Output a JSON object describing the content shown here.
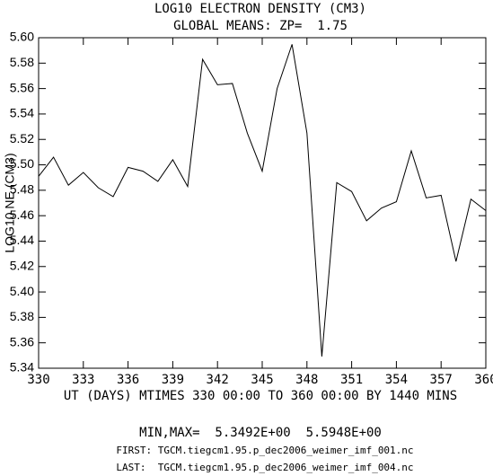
{
  "chart_data": {
    "type": "line",
    "title": "LOG10 ELECTRON DENSITY (CM3)",
    "subtitle": "GLOBAL MEANS: ZP=  1.75",
    "y_label": "LOG10 NE (CM3)",
    "x_label": "UT (DAYS) MTIMES 330 00:00 TO 360 00:00 BY 1440 MINS",
    "annotations": [
      "MIN,MAX=  5.3492E+00  5.5948E+00",
      "FIRST: TGCM.tiegcm1.95.p_dec2006_weimer_imf_001.nc",
      "LAST:  TGCM.tiegcm1.95.p_dec2006_weimer_imf_004.nc"
    ],
    "x": [
      330,
      331,
      332,
      333,
      334,
      335,
      336,
      337,
      338,
      339,
      340,
      341,
      342,
      343,
      344,
      345,
      346,
      347,
      348,
      349,
      350,
      351,
      352,
      353,
      354,
      355,
      356,
      357,
      358,
      359,
      360
    ],
    "series": [
      {
        "color": "#000000",
        "values": [
          5.491,
          5.506,
          5.484,
          5.494,
          5.482,
          5.475,
          5.498,
          5.495,
          5.487,
          5.504,
          5.483,
          5.583,
          5.563,
          5.564,
          5.525,
          5.495,
          5.56,
          5.5948,
          5.525,
          5.3492,
          5.486,
          5.479,
          5.456,
          5.466,
          5.471,
          5.511,
          5.474,
          5.476,
          5.424,
          5.473,
          5.464
        ]
      }
    ],
    "xlim": [
      330,
      360
    ],
    "xticks": [
      330,
      333,
      336,
      339,
      342,
      345,
      348,
      351,
      354,
      357,
      360
    ],
    "ylim": [
      5.34,
      5.6
    ],
    "yticks": [
      5.34,
      5.36,
      5.38,
      {
        "value": 5.4,
        "label": "5.40"
      },
      5.42,
      5.44,
      5.46,
      5.48,
      {
        "value": 5.5,
        "label": "5.50"
      },
      5.52,
      5.54,
      5.56,
      5.58,
      {
        "value": 5.6,
        "label": "5.60"
      }
    ],
    "grid": false
  }
}
